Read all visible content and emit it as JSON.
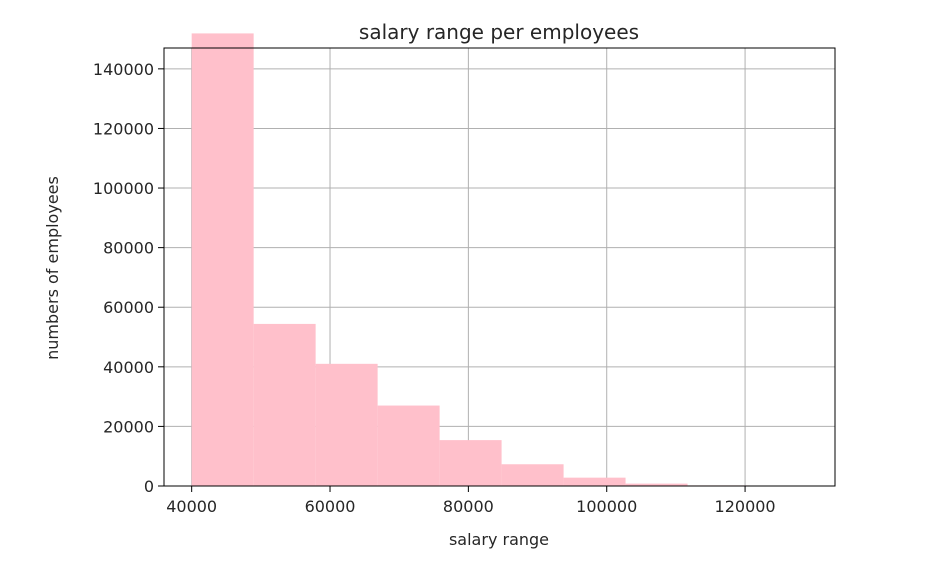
{
  "chart_data": {
    "type": "bar",
    "title": "salary range per employees",
    "xlabel": "salary range",
    "ylabel": "numbers of employees",
    "bin_edges": [
      40000,
      48961,
      57921,
      66882,
      75843,
      84803,
      93764,
      102724,
      111685,
      120645,
      129606
    ],
    "values": [
      151900,
      54400,
      41000,
      27000,
      15400,
      7300,
      2800,
      800,
      200,
      50
    ],
    "xlim": [
      36000,
      133000
    ],
    "ylim": [
      0,
      147000
    ],
    "xticks": [
      40000,
      60000,
      80000,
      100000,
      120000
    ],
    "yticks": [
      0,
      20000,
      40000,
      60000,
      80000,
      100000,
      120000,
      140000
    ],
    "xtick_labels": [
      "40000",
      "60000",
      "80000",
      "100000",
      "120000"
    ],
    "ytick_labels": [
      "0",
      "20000",
      "40000",
      "60000",
      "80000",
      "100000",
      "120000",
      "140000"
    ],
    "grid": true,
    "legend": "none",
    "bar_color": "#ffc0cb",
    "grid_color": "#b0b0b0",
    "axis_color": "#000000"
  }
}
